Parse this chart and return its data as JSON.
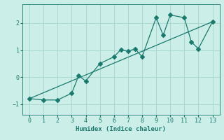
{
  "xlabel": "Humidex (Indice chaleur)",
  "ylabel": "",
  "bg_color": "#cceee8",
  "line_color": "#1a7a6e",
  "zigzag_x": [
    0,
    1,
    2,
    3,
    3.5,
    4,
    5,
    6,
    6.5,
    7,
    7.5,
    8,
    9,
    9.5,
    10,
    11,
    11.5,
    12,
    13
  ],
  "zigzag_y": [
    -0.8,
    -0.85,
    -0.85,
    -0.6,
    0.05,
    -0.15,
    0.5,
    0.75,
    1.02,
    0.95,
    1.05,
    0.75,
    2.2,
    1.55,
    2.3,
    2.2,
    1.3,
    1.05,
    2.05
  ],
  "trend_x": [
    0,
    13
  ],
  "trend_y": [
    -0.8,
    2.05
  ],
  "xlim": [
    -0.5,
    13.5
  ],
  "ylim": [
    -1.4,
    2.7
  ],
  "xticks": [
    0,
    1,
    2,
    3,
    4,
    5,
    6,
    7,
    8,
    9,
    10,
    11,
    12,
    13
  ],
  "yticks": [
    -1,
    0,
    1,
    2
  ],
  "grid_color": "#aad8d0",
  "marker": "D",
  "markersize": 3,
  "xlabel_fontsize": 6.5,
  "tick_fontsize": 6
}
